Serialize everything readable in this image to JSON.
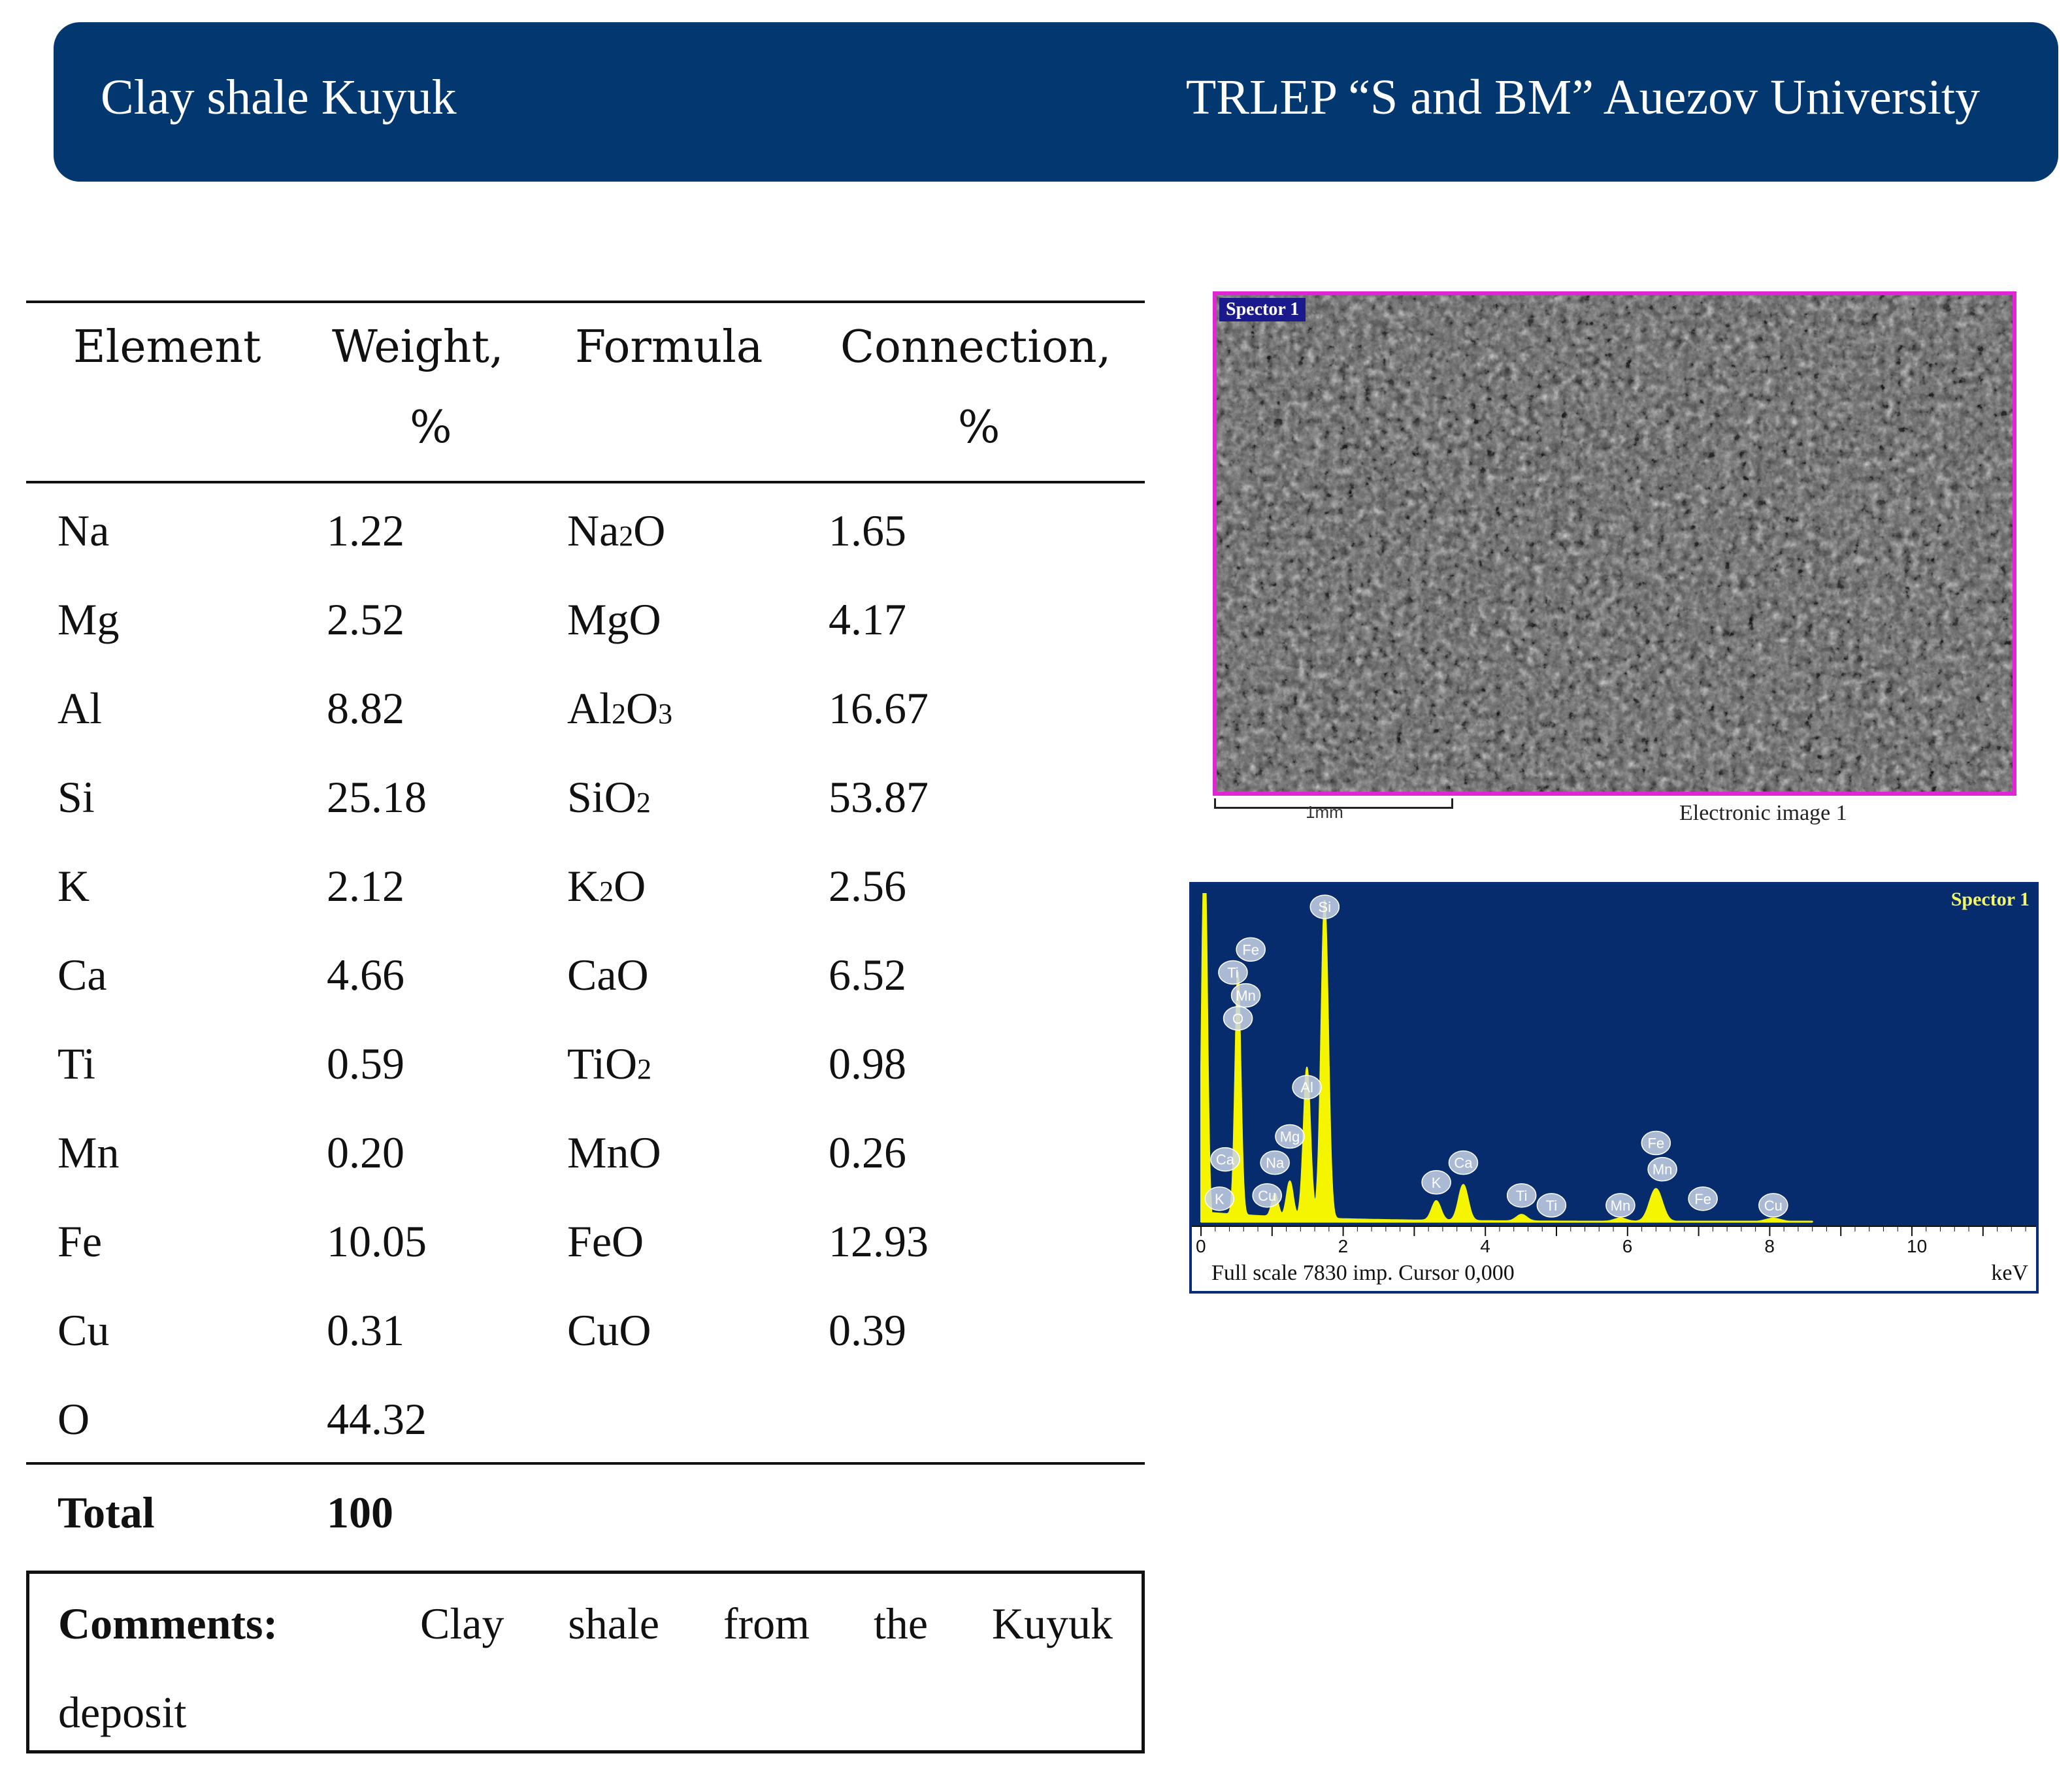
{
  "header": {
    "left_title": "Clay shale Kuyuk",
    "right_title": "TRLEP “S and BM” Auezov University"
  },
  "colors": {
    "header_bg": "#03376f",
    "sem_border": "#e026d4",
    "spectrum_bg": "#062c6e",
    "spectrum_line": "#f5f500"
  },
  "table": {
    "headers": {
      "element": "Element",
      "weight_l1": "Weight,",
      "weight_l2": "%",
      "formula": "Formula",
      "connection_l1": "Connection,",
      "connection_l2": "%"
    },
    "rows": [
      {
        "element": "Na",
        "weight": "1.22",
        "formula_main": "Na",
        "formula_sub": "2",
        "formula_tail": "O",
        "connection": "1.65"
      },
      {
        "element": "Mg",
        "weight": "2.52",
        "formula_main": "MgO",
        "formula_sub": "",
        "formula_tail": "",
        "connection": "4.17"
      },
      {
        "element": "Al",
        "weight": "8.82",
        "formula_main": "Al",
        "formula_sub": "2",
        "formula_tail": "O",
        "formula_sub2": "3",
        "connection": "16.67"
      },
      {
        "element": "Si",
        "weight": "25.18",
        "formula_main": "SiO",
        "formula_sub": "2",
        "formula_tail": "",
        "connection": "53.87"
      },
      {
        "element": "K",
        "weight": "2.12",
        "formula_main": "K",
        "formula_sub": "2",
        "formula_tail": "O",
        "connection": "2.56"
      },
      {
        "element": "Ca",
        "weight": "4.66",
        "formula_main": "CaO",
        "formula_sub": "",
        "formula_tail": "",
        "connection": "6.52"
      },
      {
        "element": "Ti",
        "weight": "0.59",
        "formula_main": "TiO",
        "formula_sub": "2",
        "formula_tail": "",
        "connection": "0.98"
      },
      {
        "element": "Mn",
        "weight": "0.20",
        "formula_main": "MnO",
        "formula_sub": "",
        "formula_tail": "",
        "connection": "0.26"
      },
      {
        "element": "Fe",
        "weight": "10.05",
        "formula_main": "FeO",
        "formula_sub": "",
        "formula_tail": "",
        "connection": "12.93"
      },
      {
        "element": "Cu",
        "weight": "0.31",
        "formula_main": "CuO",
        "formula_sub": "",
        "formula_tail": "",
        "connection": "0.39"
      },
      {
        "element": "O",
        "weight": "44.32",
        "formula_main": "",
        "formula_sub": "",
        "formula_tail": "",
        "connection": ""
      }
    ],
    "total_label": "Total",
    "total_value": "100"
  },
  "comments": {
    "label": "Comments:",
    "words_line1": [
      "Clay",
      "shale",
      "from",
      "the",
      "Kuyuk"
    ],
    "line2": "deposit"
  },
  "sem_image": {
    "label": "Spector 1",
    "scale_text": "1mm",
    "caption": "Electronic image 1"
  },
  "spectrum": {
    "label": "Spector 1",
    "footer_left": "Full scale 7830 imp. Cursor 0,000",
    "footer_right": "keV",
    "x_ticks": [
      "0",
      "2",
      "4",
      "6",
      "8",
      "10"
    ],
    "peaks": [
      {
        "element": "Si",
        "kev": 1.74,
        "height": 0.97
      },
      {
        "element": "O",
        "kev": 0.52,
        "height": 0.74
      },
      {
        "element": "Al",
        "kev": 1.49,
        "height": 0.46
      },
      {
        "element": "Mg",
        "kev": 1.25,
        "height": 0.11
      },
      {
        "element": "Na",
        "kev": 1.04,
        "height": 0.07
      },
      {
        "element": "Ca",
        "kev": 3.69,
        "height": 0.11
      },
      {
        "element": "K",
        "kev": 3.31,
        "height": 0.06
      },
      {
        "element": "Ti",
        "kev": 4.51,
        "height": 0.02
      },
      {
        "element": "Fe",
        "kev": 6.4,
        "height": 0.1
      },
      {
        "element": "Mn",
        "kev": 5.9,
        "height": 0.01
      },
      {
        "element": "Cu",
        "kev": 8.05,
        "height": 0.01
      }
    ],
    "markers": [
      {
        "element": "Si",
        "kev": 1.74,
        "tier": 0.96
      },
      {
        "element": "Fe",
        "kev": 0.7,
        "tier": 0.83
      },
      {
        "element": "Ti",
        "kev": 0.45,
        "tier": 0.76
      },
      {
        "element": "Mn",
        "kev": 0.63,
        "tier": 0.69
      },
      {
        "element": "O",
        "kev": 0.52,
        "tier": 0.62
      },
      {
        "element": "Al",
        "kev": 1.49,
        "tier": 0.41
      },
      {
        "element": "Mg",
        "kev": 1.25,
        "tier": 0.26
      },
      {
        "element": "Ca",
        "kev": 0.34,
        "tier": 0.19
      },
      {
        "element": "Na",
        "kev": 1.04,
        "tier": 0.18
      },
      {
        "element": "K",
        "kev": 0.26,
        "tier": 0.07
      },
      {
        "element": "Cu",
        "kev": 0.93,
        "tier": 0.08
      },
      {
        "element": "K",
        "kev": 3.31,
        "tier": 0.12
      },
      {
        "element": "Ca",
        "kev": 3.69,
        "tier": 0.18
      },
      {
        "element": "Ti",
        "kev": 4.51,
        "tier": 0.08
      },
      {
        "element": "Ti",
        "kev": 4.93,
        "tier": 0.05
      },
      {
        "element": "Mn",
        "kev": 5.9,
        "tier": 0.05
      },
      {
        "element": "Fe",
        "kev": 6.4,
        "tier": 0.24
      },
      {
        "element": "Mn",
        "kev": 6.49,
        "tier": 0.16
      },
      {
        "element": "Fe",
        "kev": 7.06,
        "tier": 0.07
      },
      {
        "element": "Cu",
        "kev": 8.05,
        "tier": 0.05
      }
    ]
  }
}
